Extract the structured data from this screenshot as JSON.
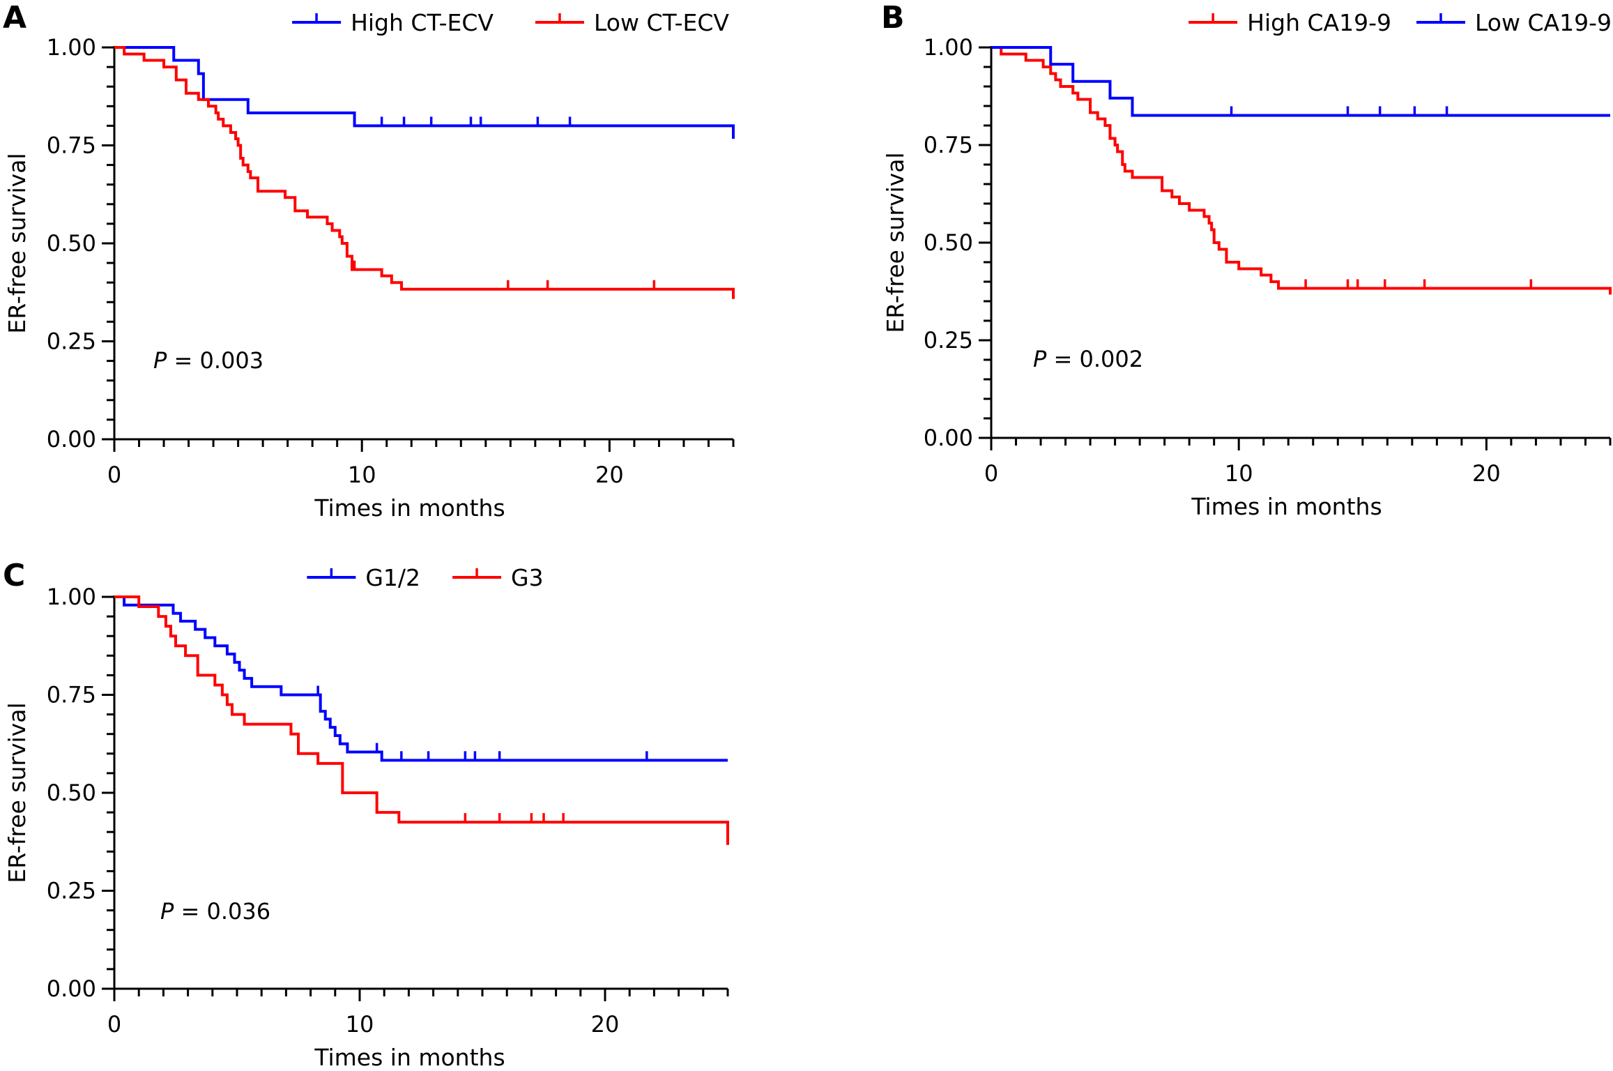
{
  "chart_data": [
    {
      "panel": "A",
      "type": "line",
      "xlabel": "Times in months",
      "ylabel": "ER-free survival",
      "xlim": [
        0,
        25
      ],
      "ylim": [
        0,
        1
      ],
      "xticks": [
        "0",
        "10",
        "20"
      ],
      "yticks": [
        "0.00",
        "0.25",
        "0.50",
        "0.75",
        "1.00"
      ],
      "annotation": {
        "p_label": "P",
        "p_text": " = 0.003"
      },
      "legend_position": "top-right",
      "series": [
        {
          "name": "High CT-ECV",
          "color": "#0000ff",
          "x": [
            0,
            2.0,
            2.4,
            3.4,
            3.6,
            4.6,
            5.4,
            9.7,
            25
          ],
          "y": [
            1.0,
            1.0,
            0.967,
            0.933,
            0.867,
            0.867,
            0.833,
            0.8,
            0.767
          ],
          "censor_x": [
            10.8,
            11.7,
            12.8,
            14.4,
            14.8,
            17.1,
            18.4
          ]
        },
        {
          "name": "Low CT-ECV",
          "color": "#ff0000",
          "x": [
            0,
            0.4,
            1.2,
            2.0,
            2.5,
            2.9,
            3.4,
            3.8,
            4.1,
            4.2,
            4.4,
            4.7,
            4.9,
            5.0,
            5.1,
            5.2,
            5.4,
            5.5,
            5.8,
            6.9,
            7.3,
            7.8,
            8.6,
            8.8,
            9.1,
            9.2,
            9.4,
            9.6,
            10.8,
            11.2,
            11.6,
            25
          ],
          "y": [
            1.0,
            0.983,
            0.967,
            0.95,
            0.917,
            0.883,
            0.867,
            0.85,
            0.833,
            0.817,
            0.8,
            0.783,
            0.767,
            0.75,
            0.717,
            0.7,
            0.683,
            0.667,
            0.633,
            0.617,
            0.583,
            0.567,
            0.55,
            0.533,
            0.517,
            0.5,
            0.467,
            0.433,
            0.417,
            0.4,
            0.383,
            0.358
          ],
          "censor_x": [
            9.7,
            15.9,
            17.5,
            21.8
          ]
        }
      ]
    },
    {
      "panel": "B",
      "type": "line",
      "xlabel": "Times in months",
      "ylabel": "ER-free survival",
      "xlim": [
        0,
        25
      ],
      "ylim": [
        0,
        1
      ],
      "xticks": [
        "0",
        "10",
        "20"
      ],
      "yticks": [
        "0.00",
        "0.25",
        "0.50",
        "0.75",
        "1.00"
      ],
      "annotation": {
        "p_label": "P",
        "p_text": " = 0.002"
      },
      "legend_position": "top-right",
      "series": [
        {
          "name": "High CA19-9",
          "color": "#ff0000",
          "x": [
            0,
            0.4,
            1.4,
            2.1,
            2.4,
            2.6,
            2.8,
            3.3,
            3.5,
            4.0,
            4.3,
            4.6,
            4.8,
            5.0,
            5.1,
            5.3,
            5.4,
            5.7,
            6.9,
            7.3,
            7.6,
            8.0,
            8.6,
            8.8,
            8.9,
            9.0,
            9.2,
            9.5,
            10.0,
            10.9,
            11.3,
            11.6,
            25
          ],
          "y": [
            1.0,
            0.983,
            0.967,
            0.95,
            0.933,
            0.917,
            0.9,
            0.883,
            0.867,
            0.833,
            0.817,
            0.8,
            0.767,
            0.75,
            0.733,
            0.7,
            0.683,
            0.667,
            0.633,
            0.617,
            0.6,
            0.583,
            0.567,
            0.55,
            0.533,
            0.5,
            0.483,
            0.45,
            0.433,
            0.417,
            0.4,
            0.383,
            0.367
          ],
          "censor_x": [
            12.7,
            14.4,
            14.8,
            15.9,
            17.5,
            21.8
          ]
        },
        {
          "name": "Low CA19-9",
          "color": "#0000ff",
          "x": [
            0,
            2.4,
            3.3,
            4.8,
            5.7,
            25
          ],
          "y": [
            1.0,
            0.957,
            0.913,
            0.87,
            0.826,
            0.826
          ],
          "censor_x": [
            9.7,
            14.4,
            15.7,
            17.1,
            18.4
          ]
        }
      ]
    },
    {
      "panel": "C",
      "type": "line",
      "xlabel": "Times in months",
      "ylabel": "ER-free survival",
      "xlim": [
        0,
        25
      ],
      "ylim": [
        0,
        1
      ],
      "xticks": [
        "0",
        "10",
        "20"
      ],
      "yticks": [
        "0.00",
        "0.25",
        "0.50",
        "0.75",
        "1.00"
      ],
      "annotation": {
        "p_label": "P",
        "p_text": " = 0.036"
      },
      "legend_position": "top-center",
      "series": [
        {
          "name": "G1/2",
          "color": "#0000ff",
          "x": [
            0,
            0.4,
            2.4,
            2.7,
            3.3,
            3.7,
            4.1,
            4.6,
            4.9,
            5.1,
            5.3,
            5.6,
            6.8,
            8.4,
            8.6,
            8.8,
            9.0,
            9.2,
            9.5,
            10.0,
            10.9,
            25
          ],
          "y": [
            1.0,
            0.979,
            0.958,
            0.938,
            0.917,
            0.896,
            0.875,
            0.854,
            0.833,
            0.813,
            0.792,
            0.771,
            0.75,
            0.708,
            0.688,
            0.667,
            0.646,
            0.625,
            0.604,
            0.604,
            0.583,
            0.583
          ],
          "censor_x": [
            8.3,
            10.7,
            11.7,
            12.8,
            14.3,
            14.7,
            15.7,
            21.7
          ]
        },
        {
          "name": "G3",
          "color": "#ff0000",
          "x": [
            0,
            1.0,
            1.8,
            2.1,
            2.3,
            2.5,
            2.9,
            3.4,
            4.1,
            4.4,
            4.6,
            4.8,
            5.3,
            7.2,
            7.5,
            8.3,
            9.3,
            10.7,
            11.6,
            25
          ],
          "y": [
            1.0,
            0.975,
            0.95,
            0.925,
            0.9,
            0.875,
            0.85,
            0.8,
            0.775,
            0.75,
            0.725,
            0.7,
            0.675,
            0.65,
            0.6,
            0.575,
            0.5,
            0.45,
            0.425,
            0.367
          ],
          "censor_x": [
            14.3,
            15.7,
            17.0,
            17.5,
            18.3
          ]
        }
      ]
    }
  ]
}
